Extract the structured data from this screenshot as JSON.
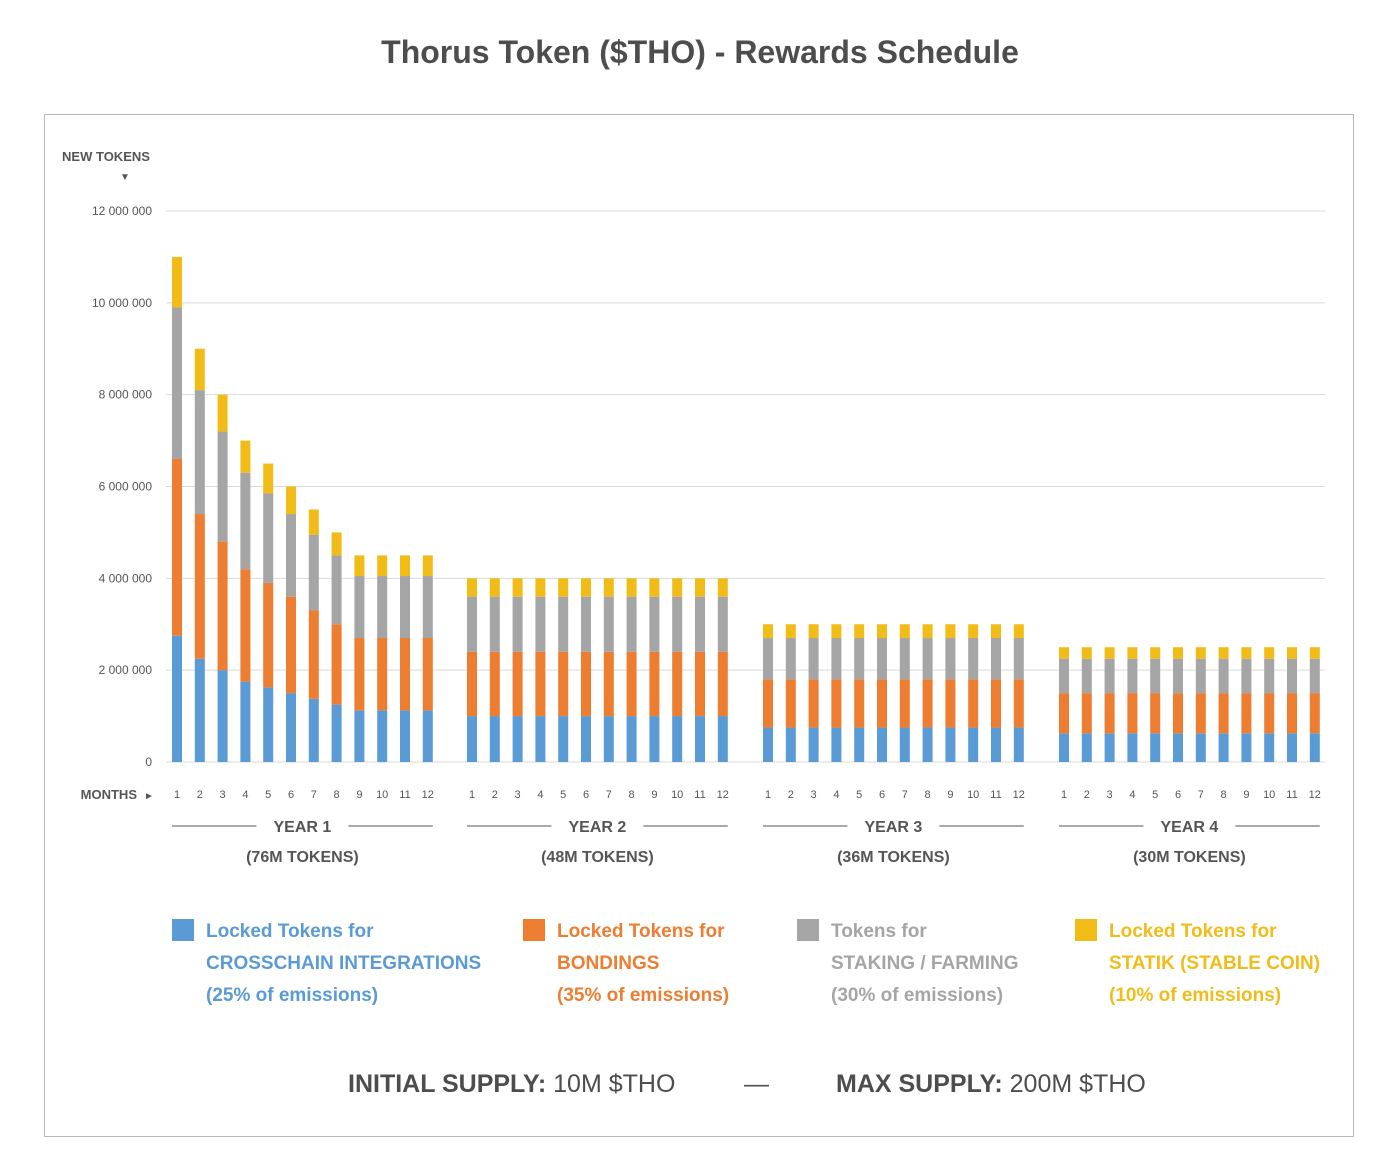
{
  "title": "Thorus Token ($THO) - Rewards Schedule",
  "chart_data": {
    "type": "bar",
    "stacked": true,
    "ylabel": "NEW TOKENS",
    "xlabel": "MONTHS",
    "ylim": [
      0,
      12000000
    ],
    "yticks": [
      0,
      2000000,
      4000000,
      6000000,
      8000000,
      10000000,
      12000000
    ],
    "ytick_labels": [
      "0",
      "2 000 000",
      "4 000 000",
      "6 000 000",
      "8 000 000",
      "10 000 000",
      "12 000 000"
    ],
    "grid": true,
    "month_labels": [
      "1",
      "2",
      "3",
      "4",
      "5",
      "6",
      "7",
      "8",
      "9",
      "10",
      "11",
      "12"
    ],
    "groups": [
      {
        "label": "YEAR 1",
        "sublabel": "(76M TOKENS)",
        "totals": [
          11000000,
          9000000,
          8000000,
          7000000,
          6500000,
          6000000,
          5500000,
          5000000,
          4500000,
          4500000,
          4500000,
          4500000
        ]
      },
      {
        "label": "YEAR 2",
        "sublabel": "(48M TOKENS)",
        "totals": [
          4000000,
          4000000,
          4000000,
          4000000,
          4000000,
          4000000,
          4000000,
          4000000,
          4000000,
          4000000,
          4000000,
          4000000
        ]
      },
      {
        "label": "YEAR 3",
        "sublabel": "(36M TOKENS)",
        "totals": [
          3000000,
          3000000,
          3000000,
          3000000,
          3000000,
          3000000,
          3000000,
          3000000,
          3000000,
          3000000,
          3000000,
          3000000
        ]
      },
      {
        "label": "YEAR 4",
        "sublabel": "(30M TOKENS)",
        "totals": [
          2500000,
          2500000,
          2500000,
          2500000,
          2500000,
          2500000,
          2500000,
          2500000,
          2500000,
          2500000,
          2500000,
          2500000
        ]
      }
    ],
    "series": [
      {
        "line1": "Locked Tokens for",
        "line2": "CROSSCHAIN INTEGRATIONS",
        "line3": "(25% of emissions)",
        "share": 0.25,
        "color": "#5b9bd5"
      },
      {
        "line1": "Locked Tokens for",
        "line2": "BONDINGS",
        "line3": "(35% of emissions)",
        "share": 0.35,
        "color": "#ed7d31"
      },
      {
        "line1": "Tokens for",
        "line2": "STAKING / FARMING",
        "line3": "(30% of emissions)",
        "share": 0.3,
        "color": "#a5a5a5"
      },
      {
        "line1": "Locked Tokens for",
        "line2": "STATIK (STABLE COIN)",
        "line3": "(10% of emissions)",
        "share": 0.1,
        "color": "#f2bc18"
      }
    ]
  },
  "footer": {
    "initial_label": "INITIAL SUPPLY:",
    "initial_value": "10M $THO",
    "dash": "—",
    "max_label": "MAX SUPPLY:",
    "max_value": "200M $THO"
  }
}
